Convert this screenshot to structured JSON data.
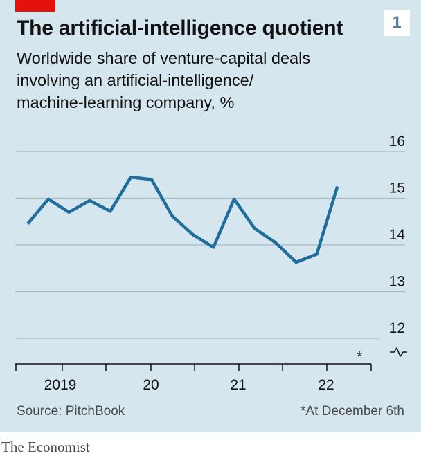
{
  "title": "The artificial-intelligence quotient",
  "chart_number": "1",
  "subtitle_lines": [
    "Worldwide share of venture-capital deals",
    "involving an artificial-intelligence/",
    "machine-learning company, %"
  ],
  "source": "Source: PitchBook",
  "footnote": "*At December 6th",
  "brand": "The Economist",
  "colors": {
    "background": "#d6e6ef",
    "line": "#1f6e9c",
    "accent": "#e3120b"
  },
  "chart_data": {
    "type": "line",
    "title": "The artificial-intelligence quotient",
    "xlabel": "",
    "ylabel": "",
    "ylim": [
      12,
      16
    ],
    "y_ticks": [
      16,
      15,
      14,
      13,
      12
    ],
    "x_tick_labels": [
      "2019",
      "20",
      "21",
      "22"
    ],
    "axis_break_marker": "*",
    "grid": true,
    "x": [
      "2018 Q4",
      "2019 Q1",
      "2019 Q2",
      "2019 Q3",
      "2019 Q4",
      "2020 Q1",
      "2020 Q2",
      "2020 Q3",
      "2020 Q4",
      "2021 Q1",
      "2021 Q2",
      "2021 Q3",
      "2021 Q4",
      "2022 Q1",
      "2022 Q2",
      "2022 Q3",
      "2022 Q4*"
    ],
    "series": [
      {
        "name": "",
        "values": [
          14.45,
          14.98,
          14.7,
          14.95,
          14.72,
          15.45,
          15.4,
          14.62,
          14.22,
          13.95,
          14.98,
          14.35,
          14.05,
          13.63,
          13.8,
          15.25,
          null
        ]
      }
    ]
  }
}
